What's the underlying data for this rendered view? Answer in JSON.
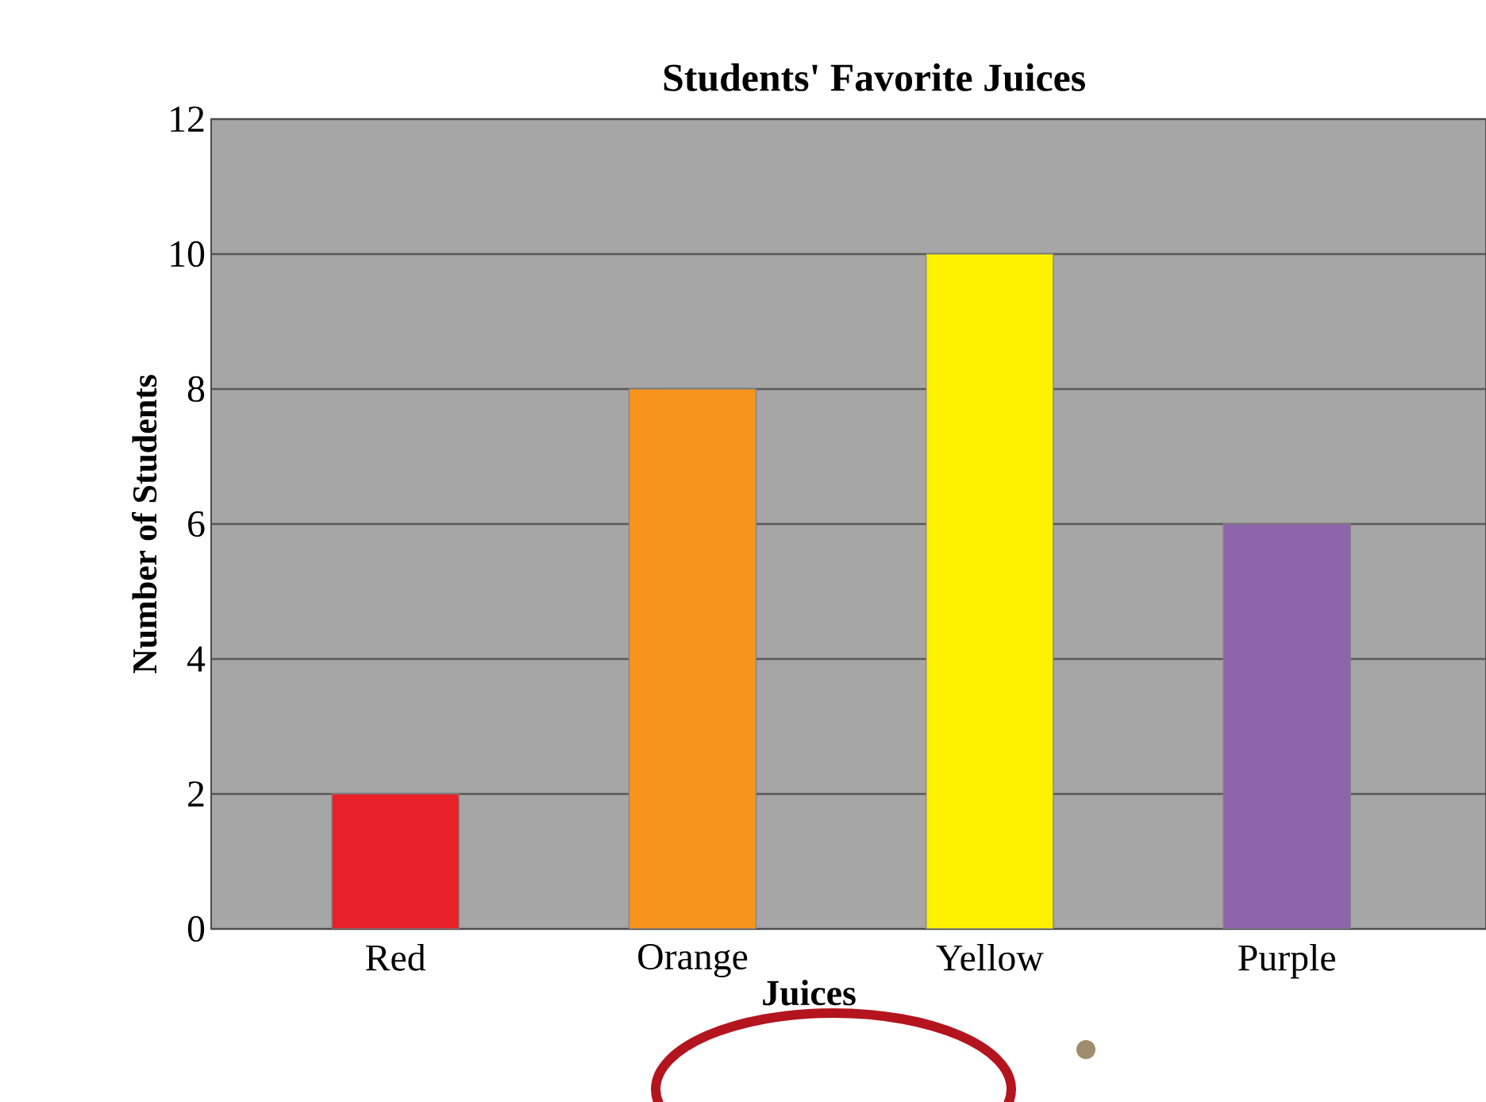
{
  "chart_data": {
    "type": "bar",
    "title": "Students' Favorite Juices",
    "xlabel": "Juices",
    "ylabel": "Number of Students",
    "categories": [
      "Red",
      "Orange",
      "Yellow",
      "Purple"
    ],
    "values": [
      2,
      8,
      10,
      6
    ],
    "colors": [
      "#e8202a",
      "#f7941d",
      "#fff200",
      "#8e65ab"
    ],
    "ylim": [
      0,
      12
    ],
    "yticks": [
      0,
      2,
      4,
      6,
      8,
      10,
      12
    ],
    "grid": "y"
  }
}
